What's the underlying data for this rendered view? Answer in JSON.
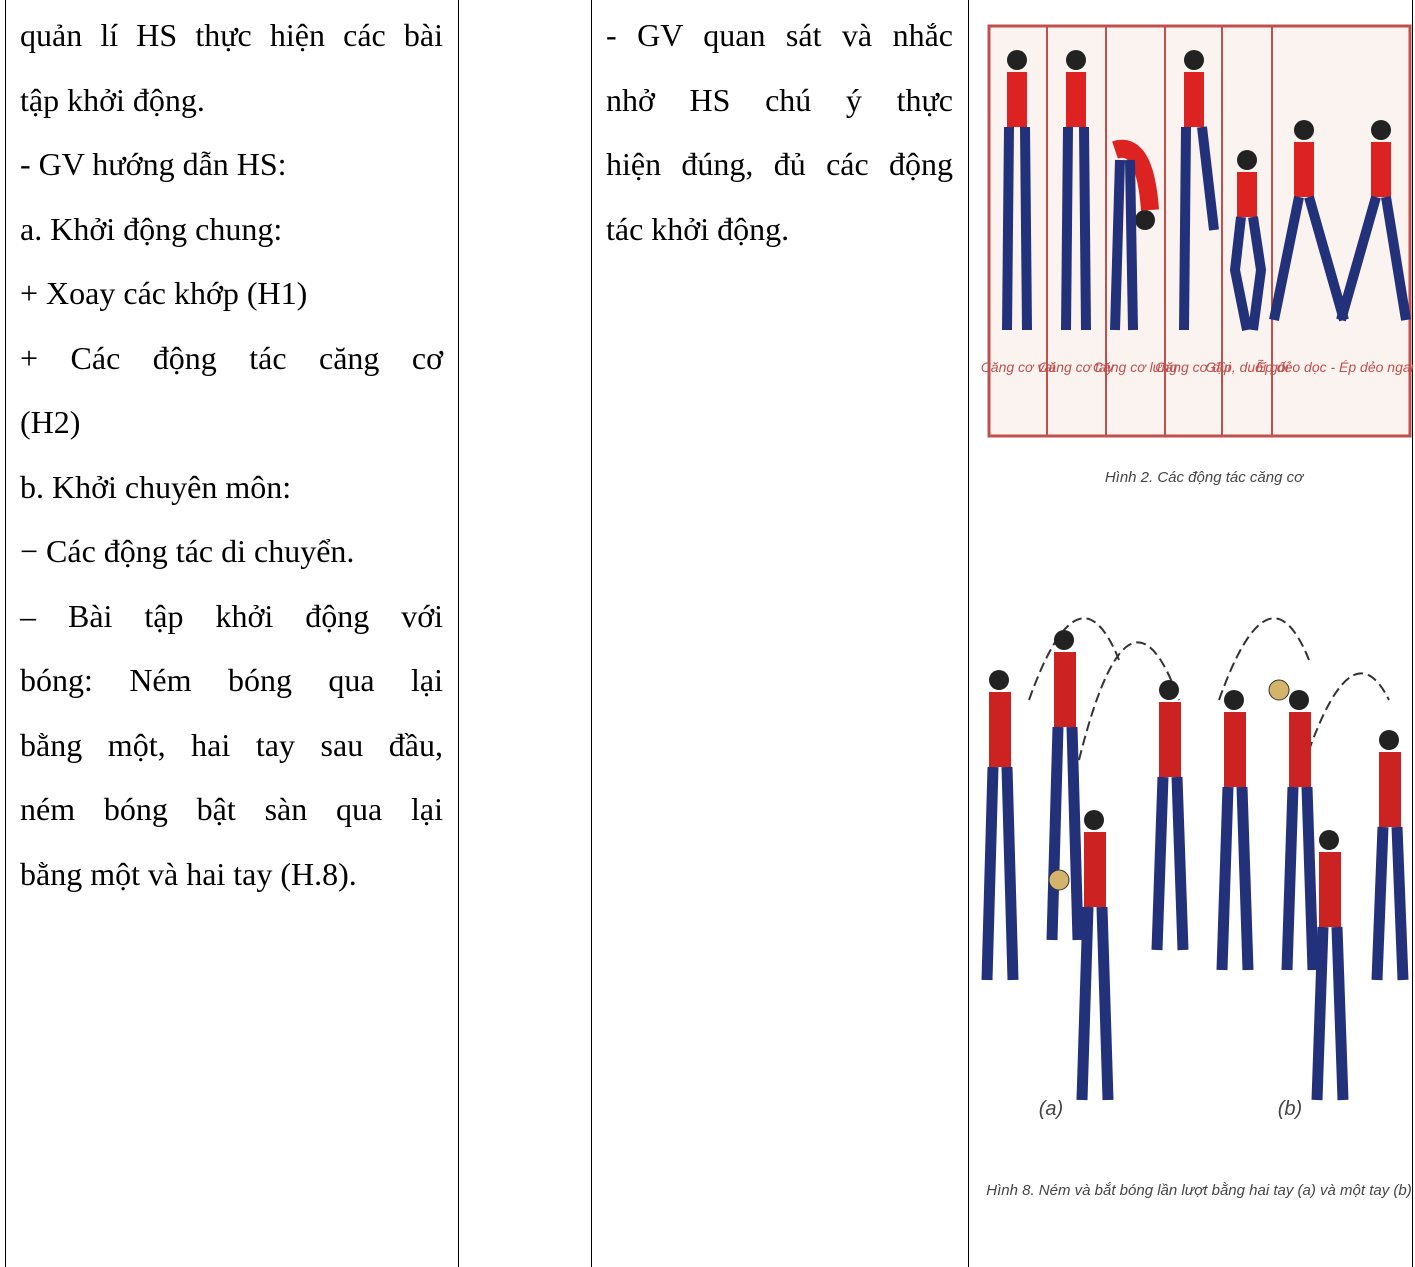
{
  "table": {
    "rows": [
      [
        {
          "lines": [
            "quản lí HS thực hiện các bài",
            "tập khởi động.",
            "- GV hướng dẫn HS:",
            "a. Khởi động chung:",
            "+ Xoay các khớp (H1)",
            "+ Các động tác căng cơ",
            "(H2)",
            "b. Khởi chuyên môn:",
            "−  Các động tác di chuyển.",
            "– Bài tập khởi động với",
            "bóng: Ném bóng qua lại",
            "bằng một, hai tay sau đầu,",
            "ném bóng bật sàn qua lại",
            "bằng một và hai tay (H.8)."
          ]
        },
        {
          "lines": []
        },
        {
          "lines": [
            "- GV quan sát và nhắc",
            "nhở HS chú ý thực",
            "hiện đúng, đủ các động",
            "tác khởi động."
          ]
        },
        {
          "figures": [
            {
              "labels": [
                "Căng cơ vai",
                "Căng cơ tay",
                "Căng cơ lưng",
                "Căng cơ đùi",
                "Gập, duỗi gối",
                "Ép dẻo dọc - Ép dẻo ngang"
              ],
              "caption": "Hình 2. Các động tác căng cơ"
            },
            {
              "labels": [
                "(a)",
                "(b)"
              ],
              "caption": "Hình 8. Ném và bắt bóng lần lượt bằng hai tay (a) và một tay (b)"
            }
          ]
        }
      ]
    ]
  }
}
